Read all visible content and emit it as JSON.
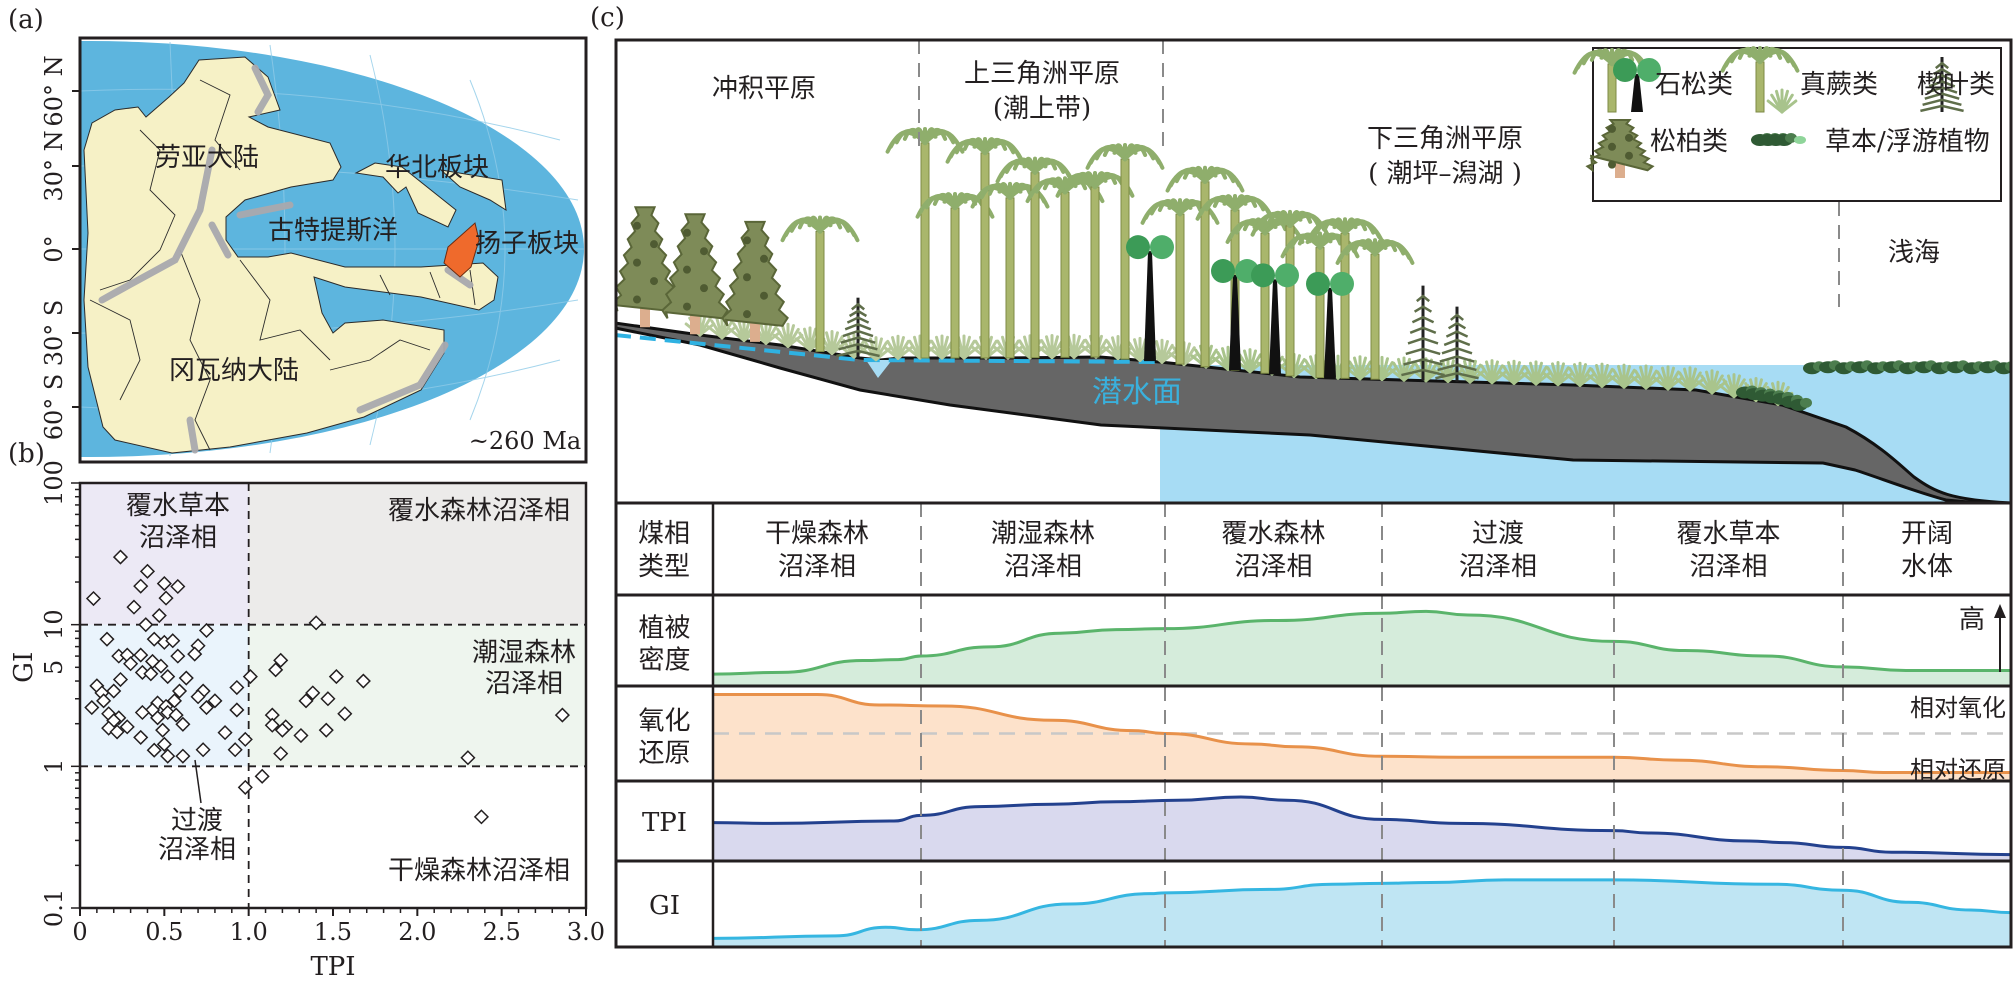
{
  "panel_labels": {
    "a": "(a)",
    "b": "(b)",
    "c": "(c)"
  },
  "map": {
    "latitude_labels": [
      "60° N",
      "30° N",
      "0°",
      "30° S",
      "60° S"
    ],
    "labels": {
      "laurasia": "劳亚大陆",
      "north_china": "华北板块",
      "paleo_tethys": "古特提斯洋",
      "yangtze": "扬子板块",
      "gondwana": "冈瓦纳大陆"
    },
    "age": "~260 Ma",
    "colors": {
      "ocean": "#5db5de",
      "land": "#f6f1c6",
      "belt": "#a9a9ae",
      "yangtze": "#ef6a2c"
    }
  },
  "chart_data": {
    "type": "scatter",
    "xlabel": "TPI",
    "ylabel": "GI",
    "xlim": [
      0,
      3.0
    ],
    "ylim": [
      0.1,
      100
    ],
    "yscale": "log",
    "x_ticks": [
      "0",
      "0.5",
      "1.0",
      "1.5",
      "2.0",
      "2.5",
      "3.0"
    ],
    "y_ticks": [
      "0.1",
      "1",
      "5",
      "10",
      "100"
    ],
    "thresholds": {
      "tpi": 1.0,
      "gi": [
        1,
        10
      ]
    },
    "regions": {
      "inundated_herbaceous": [
        "覆水草本",
        "沼泽相"
      ],
      "inundated_forest": "覆水森林沼泽相",
      "wet_forest": [
        "潮湿森林",
        "沼泽相"
      ],
      "transitional": [
        "过渡",
        "沼泽相"
      ],
      "dry_forest": "干燥森林沼泽相"
    },
    "points": [
      [
        0.24,
        30
      ],
      [
        0.4,
        23.8
      ],
      [
        0.08,
        15.3
      ],
      [
        0.36,
        18.7
      ],
      [
        0.5,
        19.5
      ],
      [
        0.58,
        18.6
      ],
      [
        0.51,
        15.4
      ],
      [
        0.32,
        13.3
      ],
      [
        0.47,
        11.6
      ],
      [
        0.39,
        10.0
      ],
      [
        0.75,
        9.1
      ],
      [
        0.16,
        7.9
      ],
      [
        0.44,
        7.9
      ],
      [
        0.5,
        7.5
      ],
      [
        0.55,
        7.7
      ],
      [
        0.7,
        7.1
      ],
      [
        0.68,
        6.2
      ],
      [
        0.23,
        6.0
      ],
      [
        0.28,
        6.1
      ],
      [
        0.36,
        6.1
      ],
      [
        0.58,
        6.0
      ],
      [
        0.43,
        5.5
      ],
      [
        0.3,
        5.3
      ],
      [
        0.48,
        5.1
      ],
      [
        0.37,
        4.6
      ],
      [
        0.42,
        4.5
      ],
      [
        0.52,
        4.3
      ],
      [
        0.24,
        4.1
      ],
      [
        0.63,
        4.2
      ],
      [
        1.01,
        4.3
      ],
      [
        0.1,
        3.7
      ],
      [
        0.13,
        3.3
      ],
      [
        0.2,
        3.4
      ],
      [
        0.59,
        3.4
      ],
      [
        0.73,
        3.4
      ],
      [
        0.93,
        3.6
      ],
      [
        0.7,
        3.1
      ],
      [
        0.14,
        2.9
      ],
      [
        0.46,
        2.8
      ],
      [
        0.56,
        2.9
      ],
      [
        0.8,
        2.9
      ],
      [
        0.07,
        2.6
      ],
      [
        0.75,
        2.6
      ],
      [
        0.51,
        2.65
      ],
      [
        0.43,
        2.5
      ],
      [
        0.93,
        2.5
      ],
      [
        0.37,
        2.4
      ],
      [
        0.52,
        2.4
      ],
      [
        0.17,
        2.35
      ],
      [
        0.57,
        2.3
      ],
      [
        0.46,
        2.2
      ],
      [
        0.23,
        2.2
      ],
      [
        0.2,
        2.1
      ],
      [
        0.61,
        1.98
      ],
      [
        0.28,
        1.9
      ],
      [
        0.17,
        1.86
      ],
      [
        0.49,
        1.8
      ],
      [
        0.22,
        1.75
      ],
      [
        0.86,
        1.73
      ],
      [
        0.36,
        1.6
      ],
      [
        0.98,
        1.55
      ],
      [
        0.5,
        1.43
      ],
      [
        0.44,
        1.3
      ],
      [
        0.73,
        1.31
      ],
      [
        0.92,
        1.31
      ],
      [
        0.52,
        1.18
      ],
      [
        0.61,
        1.18
      ],
      [
        0.98,
        0.71
      ],
      [
        1.08,
        0.85
      ],
      [
        1.4,
        10.3
      ],
      [
        1.19,
        5.6
      ],
      [
        1.16,
        4.8
      ],
      [
        1.52,
        4.3
      ],
      [
        1.68,
        4.0
      ],
      [
        1.38,
        3.3
      ],
      [
        1.34,
        2.9
      ],
      [
        1.47,
        3.0
      ],
      [
        1.57,
        2.35
      ],
      [
        1.14,
        2.3
      ],
      [
        1.14,
        1.95
      ],
      [
        1.22,
        1.9
      ],
      [
        1.2,
        1.8
      ],
      [
        1.31,
        1.65
      ],
      [
        1.46,
        1.8
      ],
      [
        1.19,
        1.23
      ],
      [
        2.3,
        1.15
      ],
      [
        2.38,
        0.44
      ],
      [
        2.86,
        2.3
      ]
    ]
  },
  "diagram": {
    "zones": {
      "alluvial_plain": "冲积平原",
      "upper_delta": [
        "上三角洲平原",
        "(潮上带)"
      ],
      "lower_delta": [
        "下三角洲平原",
        "( 潮坪–潟湖 )"
      ],
      "shallow_sea": "浅海"
    },
    "water_table": "潜水面",
    "legend": {
      "lycopsids": "石松类",
      "ferns": "真蕨类",
      "sphenopsids": "楔叶类",
      "conifers": "松柏类",
      "herbs": "草本/浮游植物"
    },
    "table": {
      "header_label": [
        "煤相",
        "类型"
      ],
      "facies": [
        [
          "干燥森林",
          "沼泽相"
        ],
        [
          "潮湿森林",
          "沼泽相"
        ],
        [
          "覆水森林",
          "沼泽相"
        ],
        [
          "过渡",
          "沼泽相"
        ],
        [
          "覆水草本",
          "沼泽相"
        ],
        [
          "开阔",
          "水体"
        ]
      ],
      "rows": [
        {
          "label": [
            "植被",
            "密度"
          ],
          "line": "#5ab46b",
          "fill": "#d5ecdb",
          "x": [
            0,
            0.33,
            0.72,
            0.89,
            1,
            1.28,
            1.57,
            1.8,
            2,
            2.52,
            3,
            3.19,
            3.37,
            4,
            4.31,
            4.66,
            5,
            5.39,
            6
          ],
          "y": [
            0.13,
            0.15,
            0.28,
            0.29,
            0.33,
            0.43,
            0.58,
            0.62,
            0.63,
            0.72,
            0.8,
            0.82,
            0.78,
            0.49,
            0.39,
            0.33,
            0.21,
            0.17,
            0.17
          ]
        },
        {
          "label": [
            "氧化",
            "还原"
          ],
          "line": "#e8914a",
          "fill": "#fde2cb",
          "x": [
            0,
            0.5,
            0.8,
            1.09,
            1.54,
            1.87,
            2,
            2.4,
            2.6,
            3,
            3.33,
            4,
            4.27,
            4.66,
            5,
            5.24,
            6
          ],
          "y": [
            0.91,
            0.91,
            0.8,
            0.79,
            0.64,
            0.53,
            0.5,
            0.39,
            0.36,
            0.26,
            0.25,
            0.25,
            0.22,
            0.15,
            0.11,
            0.09,
            0.09
          ],
          "reference": 0.5
        },
        {
          "label": [
            "TPI"
          ],
          "line": "#23418e",
          "fill": "#d9d9ee",
          "x": [
            0,
            0.28,
            0.87,
            1,
            1.24,
            1.54,
            1.8,
            2.06,
            2.35,
            2.56,
            3,
            3.33,
            4,
            4.15,
            4.59,
            4.74,
            5,
            5.29,
            6
          ],
          "y": [
            0.48,
            0.47,
            0.5,
            0.57,
            0.68,
            0.71,
            0.74,
            0.76,
            0.8,
            0.76,
            0.52,
            0.47,
            0.38,
            0.35,
            0.25,
            0.23,
            0.17,
            0.11,
            0.08
          ]
        },
        {
          "label": [
            "GI"
          ],
          "line": "#35b6e1",
          "fill": "#bfe5f3",
          "x": [
            0,
            0.59,
            0.83,
            0.98,
            1.24,
            1.61,
            1.94,
            2,
            2.48,
            2.77,
            3,
            3.21,
            3.53,
            3.8,
            4,
            4.7,
            5,
            5.39,
            5.76,
            6
          ],
          "y": [
            0.1,
            0.13,
            0.23,
            0.2,
            0.31,
            0.5,
            0.62,
            0.63,
            0.67,
            0.73,
            0.74,
            0.75,
            0.78,
            0.78,
            0.78,
            0.73,
            0.66,
            0.52,
            0.43,
            0.4
          ]
        }
      ],
      "high_label": "高",
      "relative_oxidizing": "相对氧化",
      "relative_reducing": "相对还原"
    }
  }
}
